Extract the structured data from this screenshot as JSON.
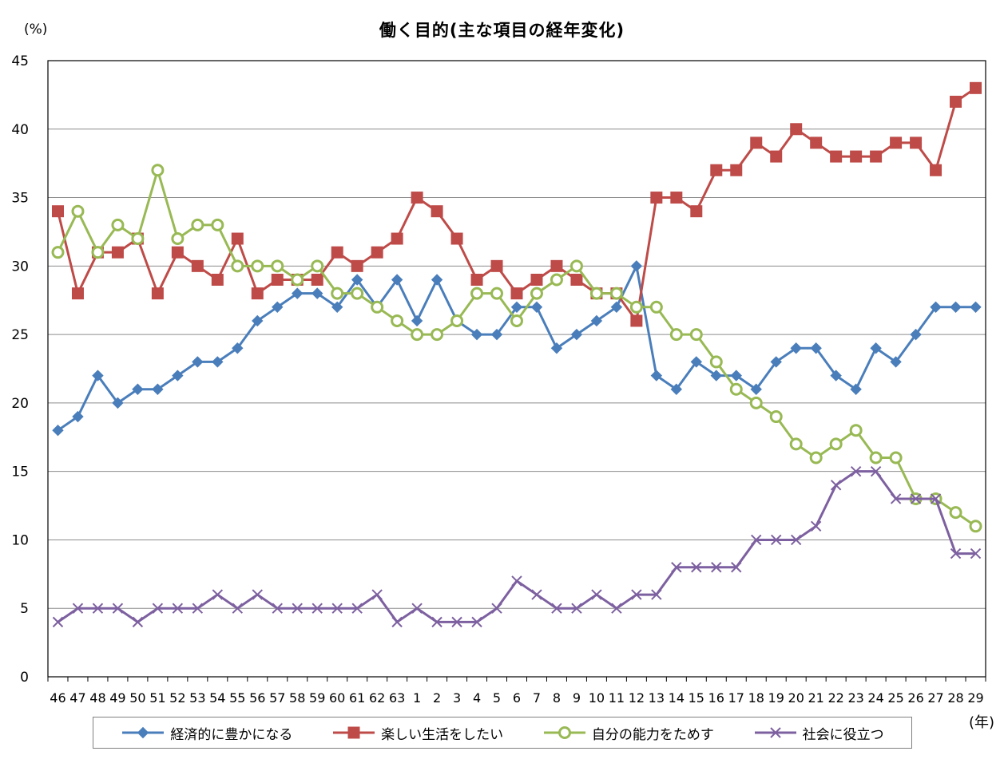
{
  "chart_data": {
    "type": "line",
    "title": "働く目的(主な項目の経年変化)",
    "ylabel": "(%)",
    "xlabel": "(年)",
    "ylim": [
      0,
      45
    ],
    "yticks": [
      0,
      5,
      10,
      15,
      20,
      25,
      30,
      35,
      40,
      45
    ],
    "grid": true,
    "legend_position": "bottom",
    "categories": [
      "46",
      "47",
      "48",
      "49",
      "50",
      "51",
      "52",
      "53",
      "54",
      "55",
      "56",
      "57",
      "58",
      "59",
      "60",
      "61",
      "62",
      "63",
      "1",
      "2",
      "3",
      "4",
      "5",
      "6",
      "7",
      "8",
      "9",
      "10",
      "11",
      "12",
      "13",
      "14",
      "15",
      "16",
      "17",
      "18",
      "19",
      "20",
      "21",
      "22",
      "23",
      "24",
      "25",
      "26",
      "27",
      "28",
      "29"
    ],
    "series": [
      {
        "name": "経済的に豊かになる",
        "color": "#4a7ebb",
        "marker": "diamond",
        "values": [
          18,
          19,
          22,
          20,
          21,
          21,
          22,
          23,
          23,
          24,
          26,
          27,
          28,
          28,
          27,
          29,
          27,
          29,
          26,
          29,
          26,
          25,
          25,
          27,
          27,
          24,
          25,
          26,
          27,
          30,
          22,
          21,
          23,
          22,
          22,
          21,
          23,
          24,
          24,
          22,
          21,
          24,
          23,
          25,
          27,
          27,
          27
        ]
      },
      {
        "name": "楽しい生活をしたい",
        "color": "#be4b48",
        "marker": "square",
        "values": [
          34,
          28,
          31,
          31,
          32,
          28,
          31,
          30,
          29,
          32,
          28,
          29,
          29,
          29,
          31,
          30,
          31,
          32,
          35,
          34,
          32,
          29,
          30,
          28,
          29,
          30,
          29,
          28,
          28,
          26,
          35,
          35,
          34,
          37,
          37,
          39,
          38,
          40,
          39,
          38,
          38,
          38,
          39,
          39,
          37,
          42,
          43
        ]
      },
      {
        "name": "自分の能力をためす",
        "color": "#98b954",
        "marker": "circle",
        "values": [
          31,
          34,
          31,
          33,
          32,
          37,
          32,
          33,
          33,
          30,
          30,
          30,
          29,
          30,
          28,
          28,
          27,
          26,
          25,
          25,
          26,
          28,
          28,
          26,
          28,
          29,
          30,
          28,
          28,
          27,
          27,
          25,
          25,
          23,
          21,
          20,
          19,
          17,
          16,
          17,
          18,
          16,
          16,
          13,
          13,
          12,
          11
        ]
      },
      {
        "name": "社会に役立つ",
        "color": "#7d60a0",
        "marker": "x",
        "values": [
          4,
          5,
          5,
          5,
          4,
          5,
          5,
          5,
          6,
          5,
          6,
          5,
          5,
          5,
          5,
          5,
          6,
          4,
          5,
          4,
          4,
          4,
          5,
          7,
          6,
          5,
          5,
          6,
          5,
          6,
          6,
          8,
          8,
          8,
          8,
          10,
          10,
          10,
          11,
          14,
          15,
          15,
          13,
          13,
          13,
          9,
          9
        ]
      }
    ]
  }
}
